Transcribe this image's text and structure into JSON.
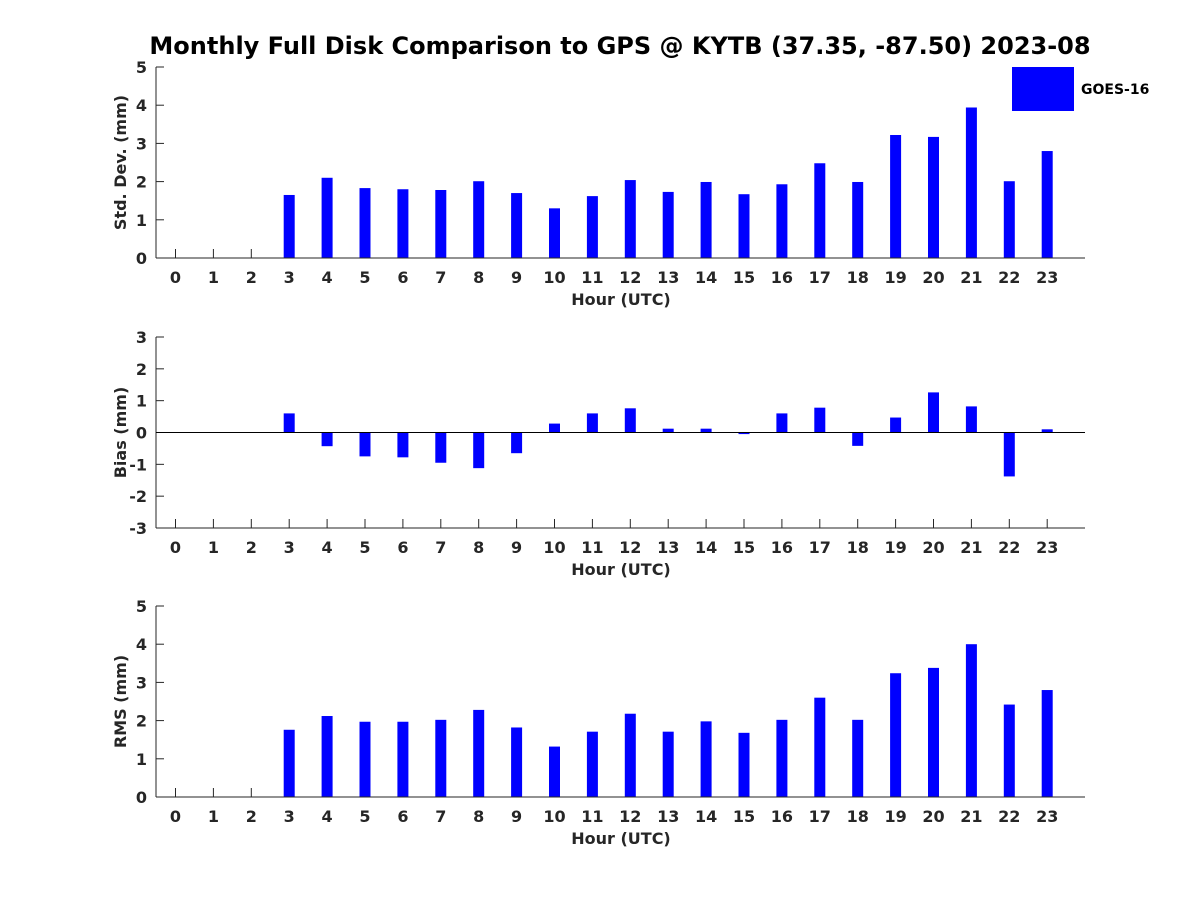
{
  "chart_data": {
    "title": "Monthly Full Disk Comparison to GPS @ KYTB (37.35, -87.50) 2023-08",
    "legend": {
      "label": "GOES-16",
      "color": "#0000ff",
      "placement": "top-right"
    },
    "bar_color": "#0000ff",
    "categories": [
      "0",
      "1",
      "2",
      "3",
      "4",
      "5",
      "6",
      "7",
      "8",
      "9",
      "10",
      "11",
      "12",
      "13",
      "14",
      "15",
      "16",
      "17",
      "18",
      "19",
      "20",
      "21",
      "22",
      "23"
    ],
    "panels": [
      {
        "type": "bar",
        "ylabel": "Std. Dev. (mm)",
        "xlabel": "Hour (UTC)",
        "ylim": [
          0,
          5
        ],
        "yticks": [
          "0",
          "1",
          "2",
          "3",
          "4",
          "5"
        ],
        "series": [
          {
            "name": "GOES-16",
            "values": [
              null,
              null,
              null,
              1.65,
              2.1,
              1.83,
              1.8,
              1.78,
              2.01,
              1.7,
              1.3,
              1.62,
              2.04,
              1.73,
              1.99,
              1.67,
              1.93,
              2.48,
              1.99,
              3.22,
              3.17,
              3.94,
              2.01,
              2.8
            ]
          }
        ]
      },
      {
        "type": "bar",
        "ylabel": "Bias (mm)",
        "xlabel": "Hour (UTC)",
        "ylim": [
          -3,
          3
        ],
        "yticks": [
          "-3",
          "-2",
          "-1",
          "0",
          "1",
          "2",
          "3"
        ],
        "series": [
          {
            "name": "GOES-16",
            "values": [
              null,
              null,
              null,
              0.6,
              -0.43,
              -0.75,
              -0.78,
              -0.95,
              -1.12,
              -0.65,
              0.28,
              0.6,
              0.76,
              0.12,
              0.12,
              -0.05,
              0.6,
              0.78,
              -0.42,
              0.47,
              1.26,
              0.82,
              -1.38,
              0.1
            ]
          }
        ]
      },
      {
        "type": "bar",
        "ylabel": "RMS (mm)",
        "xlabel": "Hour (UTC)",
        "ylim": [
          0,
          5
        ],
        "yticks": [
          "0",
          "1",
          "2",
          "3",
          "4",
          "5"
        ],
        "series": [
          {
            "name": "GOES-16",
            "values": [
              null,
              null,
              null,
              1.76,
              2.12,
              1.97,
              1.97,
              2.02,
              2.28,
              1.82,
              1.32,
              1.71,
              2.18,
              1.71,
              1.98,
              1.68,
              2.02,
              2.6,
              2.02,
              3.24,
              3.38,
              4.0,
              2.42,
              2.8
            ]
          }
        ]
      }
    ]
  }
}
